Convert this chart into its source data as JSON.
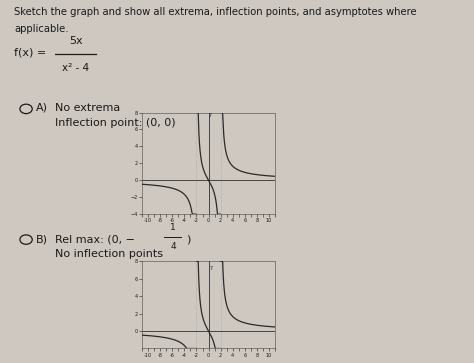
{
  "title_line1": "Sketch the graph and show all extrema, inflection points, and asymptotes where",
  "title_line2": "applicable.",
  "fx_label": "f(x) = ",
  "frac_num": "5x",
  "frac_den": "x² - 4",
  "option_A_letter": "A)",
  "option_A_line1": "No extrema",
  "option_A_line2": "Inflection point: (0, 0)",
  "option_B_letter": "B)",
  "option_B_line1": "Rel max: (0, −½⁴)",
  "option_B_line2": "No inflection points",
  "bg_color": "#cec8c0",
  "text_color": "#1a1a1a",
  "curve_color": "#2a2a2a",
  "axis_color": "#444444",
  "asymp_color": "#aaaaaa",
  "graph_A_xlim": [
    -11,
    11
  ],
  "graph_A_ylim": [
    -4,
    8
  ],
  "graph_B_xlim": [
    -11,
    11
  ],
  "graph_B_ylim": [
    -2,
    8
  ]
}
